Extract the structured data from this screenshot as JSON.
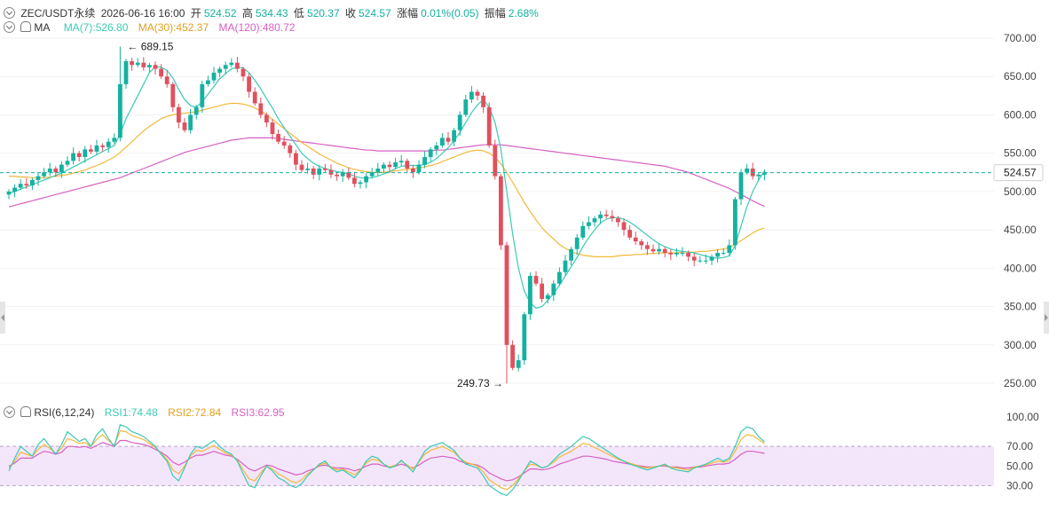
{
  "header": {
    "symbol": "ZEC/USDT永续",
    "datetime": "2026-06-16 16:00",
    "open_label": "开",
    "open": "524.52",
    "high_label": "高",
    "high": "534.43",
    "low_label": "低",
    "low": "520.37",
    "close_label": "收",
    "close": "524.57",
    "change_label": "涨幅",
    "change": "0.01%(0.05)",
    "amp_label": "振幅",
    "amp": "2.68%"
  },
  "ma_legend": {
    "name": "MA",
    "ma7": "MA(7):526.80",
    "ma30": "MA(30):452.37",
    "ma120": "MA(120):480.72"
  },
  "rsi_legend": {
    "name": "RSI(6,12,24)",
    "rsi1": "RSI1:74.48",
    "rsi2": "RSI2:72.84",
    "rsi3": "RSI3:62.95"
  },
  "price_tag": "524.57",
  "marks": {
    "high": "689.15",
    "low": "249.73"
  },
  "colors": {
    "up": "#14b1a0",
    "down": "#e0505e",
    "ma7": "#3cc9b4",
    "ma30": "#f2b93b",
    "ma120": "#d660c2",
    "rsi1": "#3cc9b4",
    "rsi2": "#f2b93b",
    "rsi3": "#d660c2",
    "rsi_band": "#f3e6fb",
    "price_line": "#14b1a0"
  },
  "chart_data": [
    {
      "type": "candlestick",
      "title": "",
      "y_ticks": [
        "700.00",
        "650.00",
        "600.00",
        "550.00",
        "500.00",
        "450.00",
        "400.00",
        "350.00",
        "300.00",
        "250.00"
      ],
      "ylim": [
        250,
        700
      ],
      "last_price": 524.57,
      "closes": [
        500,
        505,
        510,
        508,
        515,
        520,
        525,
        530,
        525,
        535,
        540,
        550,
        545,
        555,
        552,
        560,
        558,
        565,
        570,
        640,
        670,
        665,
        668,
        662,
        665,
        660,
        650,
        640,
        610,
        590,
        580,
        600,
        610,
        640,
        645,
        655,
        660,
        665,
        668,
        660,
        650,
        630,
        615,
        600,
        590,
        575,
        565,
        560,
        550,
        535,
        528,
        530,
        522,
        530,
        528,
        522,
        520,
        525,
        518,
        510,
        512,
        520,
        525,
        530,
        535,
        532,
        538,
        540,
        530,
        525,
        535,
        545,
        555,
        560,
        570,
        565,
        580,
        600,
        620,
        630,
        625,
        610,
        560,
        520,
        430,
        300,
        270,
        280,
        340,
        390,
        380,
        360,
        365,
        380,
        395,
        410,
        425,
        440,
        455,
        460,
        465,
        470,
        468,
        465,
        460,
        450,
        440,
        435,
        430,
        425,
        422,
        425,
        420,
        418,
        420,
        420,
        415,
        410,
        410,
        410,
        415,
        420,
        420,
        430,
        490,
        525,
        530,
        520,
        522,
        524.57
      ],
      "ma7": [
        498,
        500,
        503,
        506,
        509,
        512,
        515,
        518,
        521,
        524,
        528,
        532,
        536,
        540,
        544,
        548,
        552,
        556,
        560,
        575,
        595,
        610,
        625,
        640,
        655,
        663,
        662,
        658,
        648,
        633,
        620,
        612,
        610,
        617,
        627,
        637,
        647,
        654,
        660,
        662,
        661,
        655,
        645,
        634,
        621,
        609,
        595,
        583,
        572,
        561,
        550,
        543,
        537,
        533,
        530,
        528,
        526,
        525,
        523,
        520,
        518,
        517,
        518,
        520,
        523,
        526,
        530,
        533,
        534,
        534,
        534,
        535,
        538,
        543,
        550,
        557,
        566,
        577,
        590,
        603,
        613,
        620,
        610,
        590,
        555,
        500,
        445,
        400,
        370,
        355,
        348,
        350,
        358,
        367,
        378,
        390,
        402,
        414,
        428,
        440,
        450,
        459,
        464,
        466,
        466,
        464,
        460,
        455,
        449,
        443,
        437,
        432,
        428,
        425,
        423,
        422,
        421,
        420,
        418,
        416,
        414,
        413,
        414,
        416,
        430,
        455,
        480,
        500,
        515,
        526.8
      ],
      "ma30": [
        520,
        520,
        519,
        519,
        518,
        518,
        518,
        519,
        520,
        521,
        522,
        524,
        526,
        528,
        531,
        534,
        537,
        541,
        545,
        551,
        558,
        565,
        572,
        579,
        585,
        590,
        595,
        598,
        600,
        601,
        602,
        603,
        604,
        606,
        608,
        610,
        612,
        614,
        615,
        615,
        614,
        612,
        609,
        605,
        600,
        594,
        588,
        582,
        576,
        570,
        564,
        559,
        554,
        549,
        545,
        541,
        537,
        534,
        531,
        529,
        527,
        526,
        525,
        525,
        525,
        526,
        527,
        528,
        529,
        530,
        531,
        532,
        534,
        536,
        539,
        542,
        545,
        548,
        551,
        553,
        554,
        553,
        550,
        545,
        536,
        525,
        512,
        499,
        486,
        474,
        463,
        453,
        445,
        438,
        431,
        426,
        422,
        419,
        417,
        416,
        415,
        415,
        415,
        415,
        416,
        417,
        417,
        418,
        418,
        419,
        419,
        420,
        420,
        420,
        420,
        421,
        421,
        421,
        422,
        422,
        423,
        424,
        425,
        427,
        431,
        436,
        441,
        446,
        450,
        452.37
      ],
      "ma120": [
        480,
        482,
        484,
        486,
        488,
        490,
        492,
        494,
        496,
        498,
        500,
        502,
        504,
        506,
        508,
        510,
        512,
        514,
        516,
        518,
        521,
        524,
        527,
        530,
        533,
        536,
        539,
        542,
        545,
        548,
        551,
        553,
        555,
        557,
        559,
        561,
        563,
        565,
        567,
        568,
        569,
        570,
        570,
        570,
        570,
        570,
        569,
        568,
        567,
        566,
        565,
        564,
        563,
        562,
        561,
        560,
        559,
        558,
        557,
        556,
        555,
        554,
        554,
        553,
        553,
        553,
        553,
        553,
        553,
        553,
        553,
        553,
        553,
        554,
        554,
        555,
        556,
        557,
        558,
        559,
        560,
        561,
        561,
        561,
        561,
        560,
        559,
        558,
        557,
        556,
        555,
        554,
        553,
        552,
        551,
        550,
        549,
        548,
        547,
        546,
        545,
        544,
        543,
        542,
        541,
        540,
        539,
        538,
        537,
        536,
        535,
        534,
        533,
        531,
        529,
        527,
        525,
        522,
        519,
        516,
        513,
        510,
        507,
        504,
        500,
        496,
        492,
        488,
        484,
        480.72
      ]
    },
    {
      "type": "line",
      "title": "",
      "y_ticks": [
        "100.00",
        "70.00",
        "50.00",
        "30.00"
      ],
      "ylim": [
        15,
        100
      ],
      "band": [
        30,
        70
      ],
      "series": [
        {
          "name": "RSI1",
          "values": [
            45,
            58,
            70,
            65,
            60,
            72,
            78,
            70,
            62,
            72,
            85,
            80,
            75,
            78,
            70,
            82,
            88,
            78,
            70,
            92,
            90,
            85,
            83,
            80,
            75,
            70,
            62,
            55,
            40,
            35,
            48,
            62,
            70,
            68,
            72,
            76,
            70,
            65,
            62,
            55,
            42,
            30,
            28,
            40,
            50,
            45,
            38,
            35,
            30,
            28,
            32,
            40,
            46,
            52,
            55,
            48,
            44,
            46,
            42,
            38,
            45,
            55,
            60,
            58,
            52,
            48,
            50,
            56,
            50,
            44,
            55,
            65,
            70,
            72,
            74,
            70,
            66,
            58,
            52,
            50,
            48,
            40,
            30,
            26,
            22,
            20,
            26,
            35,
            45,
            55,
            52,
            48,
            50,
            56,
            62,
            66,
            70,
            75,
            80,
            78,
            74,
            70,
            66,
            62,
            58,
            55,
            52,
            50,
            48,
            46,
            48,
            50,
            52,
            48,
            46,
            45,
            44,
            48,
            50,
            52,
            55,
            58,
            55,
            58,
            70,
            85,
            90,
            88,
            80,
            74.48
          ]
        },
        {
          "name": "RSI2",
          "values": [
            48,
            55,
            64,
            62,
            60,
            67,
            72,
            68,
            63,
            68,
            78,
            76,
            73,
            74,
            70,
            77,
            82,
            76,
            71,
            86,
            85,
            81,
            79,
            77,
            73,
            69,
            63,
            57,
            46,
            42,
            50,
            60,
            66,
            65,
            68,
            71,
            67,
            63,
            61,
            56,
            46,
            37,
            35,
            43,
            50,
            47,
            42,
            39,
            35,
            33,
            36,
            42,
            46,
            51,
            53,
            49,
            46,
            47,
            44,
            41,
            46,
            53,
            57,
            56,
            52,
            49,
            51,
            55,
            51,
            47,
            54,
            62,
            66,
            68,
            70,
            67,
            64,
            58,
            54,
            52,
            50,
            44,
            36,
            32,
            28,
            26,
            30,
            37,
            45,
            52,
            51,
            48,
            50,
            54,
            59,
            62,
            65,
            69,
            73,
            72,
            69,
            66,
            63,
            60,
            57,
            55,
            53,
            51,
            49,
            48,
            49,
            50,
            51,
            49,
            48,
            47,
            46,
            49,
            50,
            51,
            53,
            55,
            54,
            56,
            65,
            77,
            82,
            81,
            77,
            72.84
          ]
        },
        {
          "name": "RSI3",
          "values": [
            50,
            53,
            58,
            58,
            58,
            62,
            65,
            64,
            62,
            64,
            70,
            70,
            69,
            70,
            68,
            71,
            74,
            72,
            70,
            76,
            76,
            74,
            73,
            72,
            70,
            67,
            64,
            60,
            54,
            51,
            54,
            58,
            61,
            61,
            63,
            65,
            63,
            61,
            60,
            57,
            52,
            47,
            45,
            48,
            51,
            50,
            47,
            45,
            43,
            41,
            42,
            45,
            47,
            50,
            51,
            49,
            48,
            48,
            47,
            45,
            47,
            50,
            52,
            52,
            50,
            49,
            50,
            52,
            50,
            48,
            51,
            55,
            58,
            59,
            60,
            59,
            58,
            55,
            53,
            52,
            51,
            48,
            43,
            40,
            37,
            35,
            36,
            39,
            43,
            47,
            47,
            46,
            47,
            49,
            52,
            54,
            56,
            58,
            60,
            60,
            59,
            58,
            57,
            55,
            54,
            53,
            52,
            51,
            50,
            49,
            49,
            50,
            50,
            49,
            49,
            48,
            48,
            49,
            49,
            50,
            51,
            52,
            52,
            53,
            57,
            62,
            65,
            65,
            64,
            62.95
          ]
        }
      ]
    }
  ]
}
